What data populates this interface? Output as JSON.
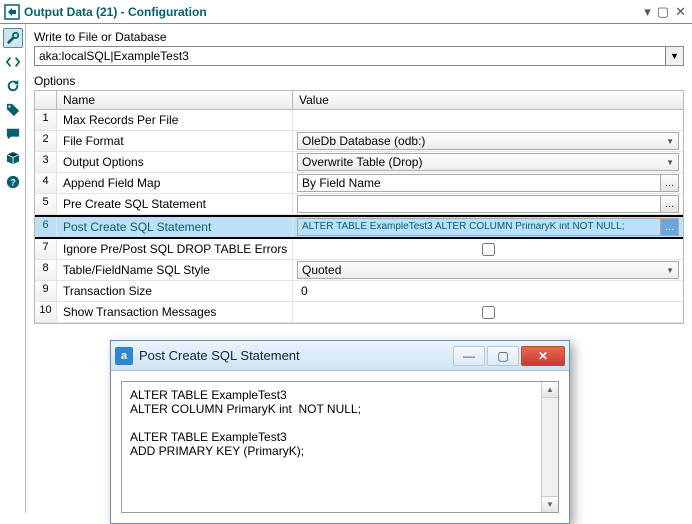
{
  "window": {
    "title": "Output Data (21)  -  Configuration"
  },
  "connection": {
    "section_label": "Write to File or Database",
    "value": "aka:localSQL|ExampleTest3"
  },
  "options": {
    "section_label": "Options",
    "headers": {
      "name": "Name",
      "value": "Value"
    },
    "rows": [
      {
        "num": "1",
        "name": "Max Records Per File",
        "type": "plain",
        "value": ""
      },
      {
        "num": "2",
        "name": "File Format",
        "type": "select",
        "value": "OleDb Database (odb:)"
      },
      {
        "num": "3",
        "name": "Output Options",
        "type": "select",
        "value": "Overwrite Table (Drop)"
      },
      {
        "num": "4",
        "name": "Append Field Map",
        "type": "ell",
        "value": "By Field Name"
      },
      {
        "num": "5",
        "name": "Pre Create SQL Statement",
        "type": "ell",
        "value": ""
      },
      {
        "num": "6",
        "name": "Post Create SQL Statement",
        "type": "ell",
        "value": "ALTER TABLE ExampleTest3\nALTER COLUMN PrimaryK int  NOT NULL;",
        "selected": true
      },
      {
        "num": "7",
        "name": "Ignore Pre/Post SQL DROP TABLE Errors",
        "type": "check",
        "checked": false
      },
      {
        "num": "8",
        "name": "Table/FieldName SQL Style",
        "type": "select",
        "value": "Quoted"
      },
      {
        "num": "9",
        "name": "Transaction Size",
        "type": "plain",
        "value": "0"
      },
      {
        "num": "10",
        "name": "Show Transaction Messages",
        "type": "check",
        "checked": false
      }
    ]
  },
  "dialog": {
    "title": "Post Create SQL Statement",
    "text": "ALTER TABLE ExampleTest3\nALTER COLUMN PrimaryK int  NOT NULL;\n\nALTER TABLE ExampleTest3\nADD PRIMARY KEY (PrimaryK);"
  },
  "colors": {
    "accent": "#04606c",
    "selected_row_bg": "#bde0f7",
    "dialog_title_grad_top": "#eaf3fb",
    "dialog_title_grad_bot": "#cfe3f3",
    "close_btn": "#c93a2c"
  }
}
